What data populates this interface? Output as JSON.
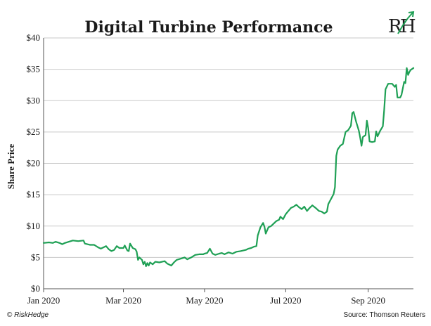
{
  "chart_data": {
    "type": "line",
    "title": "Digital Turbine Performance",
    "xlabel": "",
    "ylabel": "Share Price",
    "ylim": [
      0,
      40
    ],
    "y_ticks": [
      "$0",
      "$5",
      "$10",
      "$15",
      "$20",
      "$25",
      "$30",
      "$35",
      "$40"
    ],
    "x_tick_labels": [
      "Jan 2020",
      "Mar 2020",
      "May 2020",
      "Jul 2020",
      "Sep 2020"
    ],
    "x_tick_dates": [
      "2020-01-01",
      "2020-03-01",
      "2020-05-01",
      "2020-07-01",
      "2020-09-01"
    ],
    "xlim": [
      "2020-01-01",
      "2020-10-05"
    ],
    "grid": "horizontal",
    "legend": "none",
    "series": [
      {
        "color": "#1fa055",
        "points": [
          [
            "2020-01-01",
            7.3
          ],
          [
            "2020-01-05",
            7.4
          ],
          [
            "2020-01-08",
            7.3
          ],
          [
            "2020-01-10",
            7.5
          ],
          [
            "2020-01-13",
            7.3
          ],
          [
            "2020-01-15",
            7.1
          ],
          [
            "2020-01-17",
            7.3
          ],
          [
            "2020-01-20",
            7.5
          ],
          [
            "2020-01-23",
            7.7
          ],
          [
            "2020-01-27",
            7.6
          ],
          [
            "2020-01-31",
            7.7
          ],
          [
            "2020-02-01",
            7.2
          ],
          [
            "2020-02-05",
            7.0
          ],
          [
            "2020-02-08",
            7.0
          ],
          [
            "2020-02-11",
            6.6
          ],
          [
            "2020-02-13",
            6.4
          ],
          [
            "2020-02-15",
            6.6
          ],
          [
            "2020-02-17",
            6.8
          ],
          [
            "2020-02-19",
            6.3
          ],
          [
            "2020-02-21",
            6.0
          ],
          [
            "2020-02-23",
            6.2
          ],
          [
            "2020-02-25",
            6.8
          ],
          [
            "2020-02-27",
            6.5
          ],
          [
            "2020-03-01",
            6.5
          ],
          [
            "2020-03-02",
            6.9
          ],
          [
            "2020-03-03",
            6.5
          ],
          [
            "2020-03-04",
            6.1
          ],
          [
            "2020-03-05",
            6.0
          ],
          [
            "2020-03-06",
            7.2
          ],
          [
            "2020-03-08",
            6.5
          ],
          [
            "2020-03-10",
            6.3
          ],
          [
            "2020-03-11",
            5.9
          ],
          [
            "2020-03-12",
            4.6
          ],
          [
            "2020-03-13",
            5.0
          ],
          [
            "2020-03-15",
            4.6
          ],
          [
            "2020-03-16",
            3.9
          ],
          [
            "2020-03-17",
            4.3
          ],
          [
            "2020-03-18",
            3.6
          ],
          [
            "2020-03-19",
            4.1
          ],
          [
            "2020-03-20",
            3.7
          ],
          [
            "2020-03-21",
            4.2
          ],
          [
            "2020-03-23",
            3.9
          ],
          [
            "2020-03-25",
            4.3
          ],
          [
            "2020-03-28",
            4.2
          ],
          [
            "2020-04-01",
            4.4
          ],
          [
            "2020-04-03",
            4.0
          ],
          [
            "2020-04-06",
            3.7
          ],
          [
            "2020-04-08",
            4.2
          ],
          [
            "2020-04-10",
            4.6
          ],
          [
            "2020-04-13",
            4.8
          ],
          [
            "2020-04-16",
            5.0
          ],
          [
            "2020-04-18",
            4.7
          ],
          [
            "2020-04-21",
            5.0
          ],
          [
            "2020-04-24",
            5.4
          ],
          [
            "2020-04-27",
            5.5
          ],
          [
            "2020-04-30",
            5.5
          ],
          [
            "2020-05-01",
            5.6
          ],
          [
            "2020-05-03",
            5.7
          ],
          [
            "2020-05-05",
            6.4
          ],
          [
            "2020-05-07",
            5.6
          ],
          [
            "2020-05-09",
            5.4
          ],
          [
            "2020-05-12",
            5.6
          ],
          [
            "2020-05-14",
            5.7
          ],
          [
            "2020-05-16",
            5.5
          ],
          [
            "2020-05-19",
            5.8
          ],
          [
            "2020-05-22",
            5.6
          ],
          [
            "2020-05-25",
            5.9
          ],
          [
            "2020-05-28",
            6.0
          ],
          [
            "2020-06-01",
            6.2
          ],
          [
            "2020-06-03",
            6.4
          ],
          [
            "2020-06-05",
            6.5
          ],
          [
            "2020-06-07",
            6.7
          ],
          [
            "2020-06-09",
            6.8
          ],
          [
            "2020-06-10",
            8.5
          ],
          [
            "2020-06-12",
            9.8
          ],
          [
            "2020-06-14",
            10.5
          ],
          [
            "2020-06-15",
            9.9
          ],
          [
            "2020-06-16",
            8.8
          ],
          [
            "2020-06-18",
            9.8
          ],
          [
            "2020-06-20",
            10.0
          ],
          [
            "2020-06-22",
            10.4
          ],
          [
            "2020-06-24",
            10.8
          ],
          [
            "2020-06-26",
            11.0
          ],
          [
            "2020-06-27",
            11.5
          ],
          [
            "2020-06-29",
            11.1
          ],
          [
            "2020-07-01",
            11.9
          ],
          [
            "2020-07-03",
            12.4
          ],
          [
            "2020-07-05",
            12.9
          ],
          [
            "2020-07-07",
            13.1
          ],
          [
            "2020-07-09",
            13.4
          ],
          [
            "2020-07-11",
            13.0
          ],
          [
            "2020-07-13",
            12.7
          ],
          [
            "2020-07-15",
            13.1
          ],
          [
            "2020-07-17",
            12.4
          ],
          [
            "2020-07-19",
            12.9
          ],
          [
            "2020-07-21",
            13.3
          ],
          [
            "2020-07-24",
            12.8
          ],
          [
            "2020-07-26",
            12.4
          ],
          [
            "2020-07-28",
            12.3
          ],
          [
            "2020-07-30",
            12.0
          ],
          [
            "2020-08-01",
            12.3
          ],
          [
            "2020-08-02",
            13.5
          ],
          [
            "2020-08-04",
            14.3
          ],
          [
            "2020-08-06",
            15.1
          ],
          [
            "2020-08-07",
            16.2
          ],
          [
            "2020-08-08",
            21.2
          ],
          [
            "2020-08-09",
            22.2
          ],
          [
            "2020-08-11",
            22.8
          ],
          [
            "2020-08-13",
            23.1
          ],
          [
            "2020-08-15",
            25.0
          ],
          [
            "2020-08-17",
            25.3
          ],
          [
            "2020-08-19",
            26.0
          ],
          [
            "2020-08-20",
            28.0
          ],
          [
            "2020-08-21",
            28.2
          ],
          [
            "2020-08-23",
            26.6
          ],
          [
            "2020-08-25",
            25.2
          ],
          [
            "2020-08-26",
            24.1
          ],
          [
            "2020-08-27",
            22.8
          ],
          [
            "2020-08-28",
            24.2
          ],
          [
            "2020-08-30",
            24.5
          ],
          [
            "2020-08-31",
            26.8
          ],
          [
            "2020-09-01",
            25.6
          ],
          [
            "2020-09-02",
            23.5
          ],
          [
            "2020-09-04",
            23.4
          ],
          [
            "2020-09-06",
            23.5
          ],
          [
            "2020-09-07",
            25.1
          ],
          [
            "2020-09-08",
            24.3
          ],
          [
            "2020-09-10",
            25.2
          ],
          [
            "2020-09-12",
            25.9
          ],
          [
            "2020-09-13",
            28.5
          ],
          [
            "2020-09-14",
            31.8
          ],
          [
            "2020-09-16",
            32.7
          ],
          [
            "2020-09-19",
            32.7
          ],
          [
            "2020-09-21",
            32.2
          ],
          [
            "2020-09-22",
            32.5
          ],
          [
            "2020-09-23",
            30.5
          ],
          [
            "2020-09-25",
            30.5
          ],
          [
            "2020-09-26",
            30.9
          ],
          [
            "2020-09-28",
            33.0
          ],
          [
            "2020-09-29",
            32.8
          ],
          [
            "2020-09-30",
            35.2
          ],
          [
            "2020-10-01",
            34.1
          ],
          [
            "2020-10-02",
            34.6
          ],
          [
            "2020-10-03",
            34.9
          ],
          [
            "2020-10-05",
            35.2
          ]
        ]
      }
    ]
  },
  "footer": {
    "copyright_symbol": "©",
    "brand": "RiskHedge",
    "source": "Source: Thomson Reuters"
  },
  "logo": {
    "text": "RH",
    "color": "#1fa055"
  }
}
